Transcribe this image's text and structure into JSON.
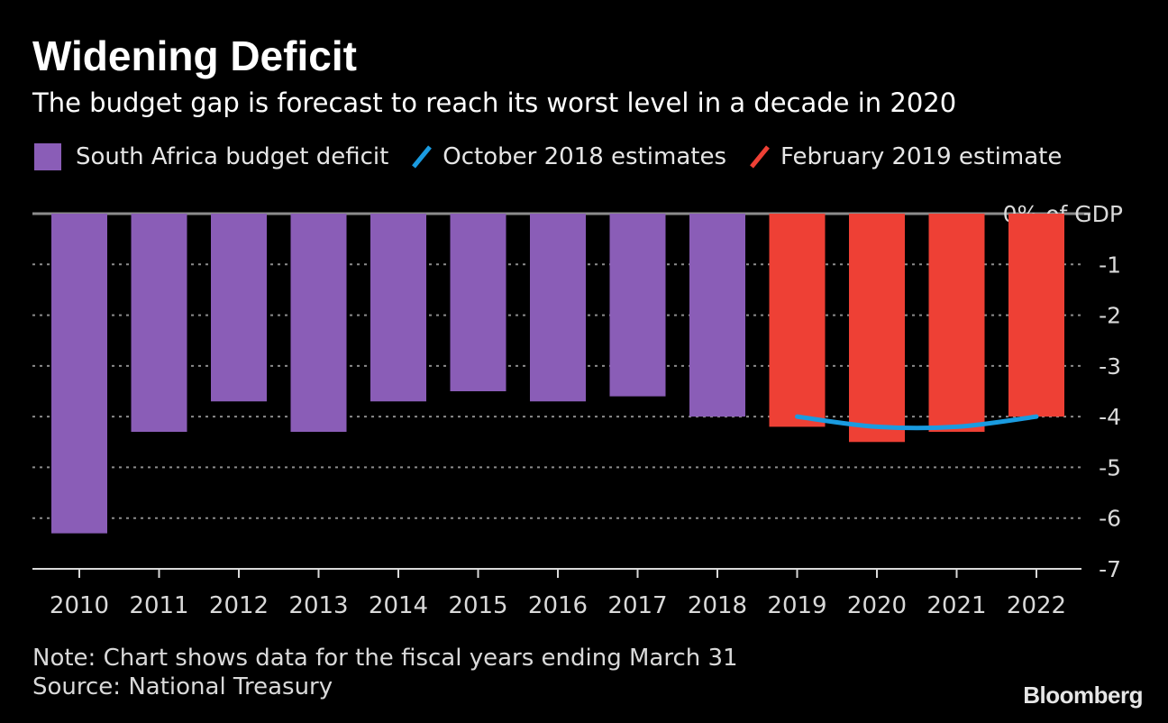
{
  "header": {
    "title": "Widening Deficit",
    "subtitle": "The budget gap is forecast to reach its worst level in a decade in 2020"
  },
  "legend": {
    "items": [
      {
        "label": "South Africa budget deficit",
        "color": "#8a5db7",
        "shape": "box"
      },
      {
        "label": "October 2018 estimates",
        "color": "#1a9be0",
        "shape": "line"
      },
      {
        "label": "February 2019 estimate",
        "color": "#ee4035",
        "shape": "line"
      }
    ]
  },
  "footer": {
    "note": "Note: Chart shows data for the fiscal years ending March 31",
    "source": "Source: National Treasury",
    "brand": "Bloomberg"
  },
  "chart_data": {
    "type": "bar",
    "title": "Widening Deficit",
    "subtitle": "The budget gap is forecast to reach its worst level in a decade in 2020",
    "categories": [
      "2010",
      "2011",
      "2012",
      "2013",
      "2014",
      "2015",
      "2016",
      "2017",
      "2018",
      "2019",
      "2020",
      "2021",
      "2022"
    ],
    "series": [
      {
        "name": "South Africa budget deficit",
        "type": "bar",
        "color": "#8a5db7",
        "x": [
          "2010",
          "2011",
          "2012",
          "2013",
          "2014",
          "2015",
          "2016",
          "2017",
          "2018"
        ],
        "values": [
          -6.3,
          -4.3,
          -3.7,
          -4.3,
          -3.7,
          -3.5,
          -3.7,
          -3.6,
          -4.0
        ]
      },
      {
        "name": "February 2019 estimate",
        "type": "bar",
        "color": "#ee4035",
        "x": [
          "2019",
          "2020",
          "2021",
          "2022"
        ],
        "values": [
          -4.2,
          -4.5,
          -4.3,
          -4.0
        ]
      },
      {
        "name": "October 2018 estimates",
        "type": "line",
        "color": "#1a9be0",
        "x": [
          "2019",
          "2020",
          "2021",
          "2022"
        ],
        "values": [
          -4.0,
          -4.2,
          -4.2,
          -4.0
        ]
      }
    ],
    "yaxis": {
      "ticks": [
        0,
        -1,
        -2,
        -3,
        -4,
        -5,
        -6,
        -7
      ],
      "tick_labels": [
        "0% of GDP",
        "-1",
        "-2",
        "-3",
        "-4",
        "-5",
        "-6",
        "-7"
      ],
      "position": "right"
    },
    "ylim": [
      -7,
      0
    ],
    "grid": true,
    "legend_position": "top-left"
  }
}
